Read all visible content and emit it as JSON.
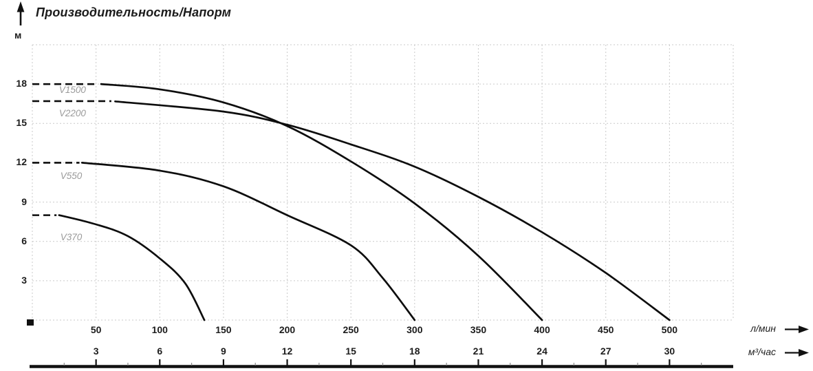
{
  "chart_data": {
    "type": "line",
    "title": "Производительность/Напорм",
    "ylabel": "м",
    "xlabel_primary": "л/мин",
    "xlabel_secondary": "м³/час",
    "xlim": [
      0,
      550
    ],
    "ylim": [
      0,
      21
    ],
    "x_ticks_lmin": [
      50,
      100,
      150,
      200,
      250,
      300,
      350,
      400,
      450,
      500
    ],
    "x_ticks_m3h": [
      3,
      6,
      9,
      12,
      15,
      18,
      21,
      24,
      27,
      30
    ],
    "y_ticks": [
      3,
      6,
      9,
      12,
      15,
      18
    ],
    "grid": "dashed",
    "legend_position": "inline-labels-left",
    "series": [
      {
        "name": "V1500",
        "label_pos": [
          21,
          17.55
        ],
        "dashed": [
          [
            0,
            18
          ],
          [
            50,
            18
          ]
        ],
        "points": [
          [
            54,
            18
          ],
          [
            100,
            17.6
          ],
          [
            150,
            16.6
          ],
          [
            200,
            14.8
          ],
          [
            250,
            12.1
          ],
          [
            300,
            8.9
          ],
          [
            350,
            4.9
          ],
          [
            400,
            0
          ]
        ]
      },
      {
        "name": "V2200",
        "label_pos": [
          21,
          15.75
        ],
        "dashed": [
          [
            0,
            16.7
          ],
          [
            62,
            16.7
          ]
        ],
        "points": [
          [
            65,
            16.68
          ],
          [
            150,
            15.9
          ],
          [
            200,
            14.9
          ],
          [
            250,
            13.4
          ],
          [
            300,
            11.7
          ],
          [
            350,
            9.4
          ],
          [
            400,
            6.7
          ],
          [
            450,
            3.6
          ],
          [
            500,
            0
          ]
        ]
      },
      {
        "name": "V550",
        "label_pos": [
          22,
          10.95
        ],
        "dashed": [
          [
            0,
            12
          ],
          [
            37,
            12
          ]
        ],
        "points": [
          [
            39,
            12
          ],
          [
            100,
            11.4
          ],
          [
            150,
            10.2
          ],
          [
            200,
            8.0
          ],
          [
            250,
            5.7
          ],
          [
            275,
            3.2
          ],
          [
            300,
            0
          ]
        ]
      },
      {
        "name": "V370",
        "label_pos": [
          22,
          6.3
        ],
        "dashed": [
          [
            0,
            8
          ],
          [
            19,
            8
          ]
        ],
        "points": [
          [
            21,
            8
          ],
          [
            50,
            7.3
          ],
          [
            75,
            6.4
          ],
          [
            100,
            4.7
          ],
          [
            120,
            2.8
          ],
          [
            135,
            0
          ]
        ]
      }
    ],
    "colors": {
      "curve": "#0d0d0d",
      "grid": "#c9c9c9",
      "series_label": "#9a9a9a",
      "axis_text": "#1c1c1c",
      "background": "#ffffff"
    }
  }
}
